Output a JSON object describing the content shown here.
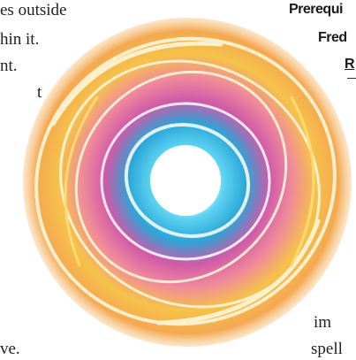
{
  "left_text": [
    "es outside",
    "hin it.",
    "nt.",
    "t",
    "ve."
  ],
  "right_text": {
    "headings": [
      "Prerequi",
      "Fred",
      "R"
    ],
    "body": [
      "im",
      "spell"
    ]
  }
}
